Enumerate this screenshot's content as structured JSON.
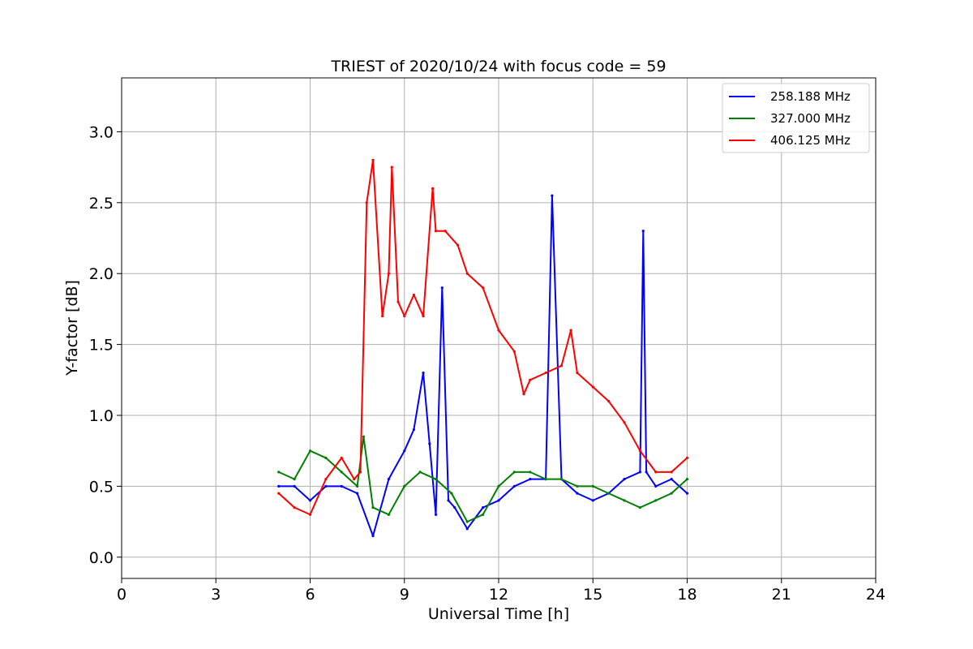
{
  "chart_data": {
    "type": "line",
    "title": "TRIEST of 2020/10/24 with focus code = 59",
    "xlabel": "Universal Time [h]",
    "ylabel": "Y-factor [dB]",
    "xlim": [
      0,
      24
    ],
    "ylim": [
      -0.15,
      3.38
    ],
    "xticks": [
      0,
      3,
      6,
      9,
      12,
      15,
      18,
      21,
      24
    ],
    "xtick_labels": [
      "0",
      "3",
      "6",
      "9",
      "12",
      "15",
      "18",
      "21",
      "24"
    ],
    "yticks": [
      0.0,
      0.5,
      1.0,
      1.5,
      2.0,
      2.5,
      3.0
    ],
    "ytick_labels": [
      "0.0",
      "0.5",
      "1.0",
      "1.5",
      "2.0",
      "2.5",
      "3.0"
    ],
    "grid": true,
    "legend_position": "top-right",
    "series": [
      {
        "name": "258.188 MHz",
        "color": "#0000ff",
        "x": [
          5.0,
          5.5,
          6.0,
          6.5,
          7.0,
          7.5,
          8.0,
          8.5,
          9.0,
          9.3,
          9.6,
          9.8,
          10.0,
          10.2,
          10.4,
          10.6,
          11.0,
          11.5,
          12.0,
          12.5,
          13.0,
          13.5,
          13.7,
          14.0,
          14.5,
          15.0,
          15.5,
          16.0,
          16.5,
          16.6,
          16.7,
          17.0,
          17.5,
          18.0
        ],
        "y": [
          0.5,
          0.5,
          0.4,
          0.5,
          0.5,
          0.45,
          0.15,
          0.55,
          0.75,
          0.9,
          1.3,
          0.8,
          0.3,
          1.9,
          0.4,
          0.35,
          0.2,
          0.35,
          0.4,
          0.5,
          0.55,
          0.55,
          2.55,
          0.55,
          0.45,
          0.4,
          0.45,
          0.55,
          0.6,
          2.3,
          0.6,
          0.5,
          0.55,
          0.45
        ]
      },
      {
        "name": "327.000 MHz",
        "color": "#008000",
        "x": [
          5.0,
          5.5,
          6.0,
          6.5,
          7.0,
          7.5,
          7.7,
          8.0,
          8.5,
          9.0,
          9.5,
          10.0,
          10.5,
          11.0,
          11.5,
          12.0,
          12.5,
          13.0,
          13.5,
          14.0,
          14.5,
          15.0,
          15.5,
          16.0,
          16.5,
          17.0,
          17.5,
          18.0
        ],
        "y": [
          0.6,
          0.55,
          0.75,
          0.7,
          0.6,
          0.5,
          0.85,
          0.35,
          0.3,
          0.5,
          0.6,
          0.55,
          0.45,
          0.25,
          0.3,
          0.5,
          0.6,
          0.6,
          0.55,
          0.55,
          0.5,
          0.5,
          0.45,
          0.4,
          0.35,
          0.4,
          0.45,
          0.55
        ]
      },
      {
        "name": "406.125 MHz",
        "color": "#ff0000",
        "x": [
          5.0,
          5.5,
          6.0,
          6.5,
          7.0,
          7.4,
          7.6,
          7.8,
          8.0,
          8.3,
          8.5,
          8.6,
          8.8,
          9.0,
          9.3,
          9.6,
          9.9,
          10.0,
          10.3,
          10.7,
          11.0,
          11.5,
          12.0,
          12.5,
          12.8,
          13.0,
          13.5,
          14.0,
          14.3,
          14.5,
          15.0,
          15.5,
          16.0,
          16.5,
          17.0,
          17.5,
          18.0
        ],
        "y": [
          0.45,
          0.35,
          0.3,
          0.55,
          0.7,
          0.55,
          0.6,
          2.5,
          2.8,
          1.7,
          2.0,
          2.75,
          1.8,
          1.7,
          1.85,
          1.7,
          2.6,
          2.3,
          2.3,
          2.2,
          2.0,
          1.9,
          1.6,
          1.45,
          1.15,
          1.25,
          1.3,
          1.35,
          1.6,
          1.3,
          1.2,
          1.1,
          0.95,
          0.75,
          0.6,
          0.6,
          0.7
        ]
      }
    ]
  }
}
